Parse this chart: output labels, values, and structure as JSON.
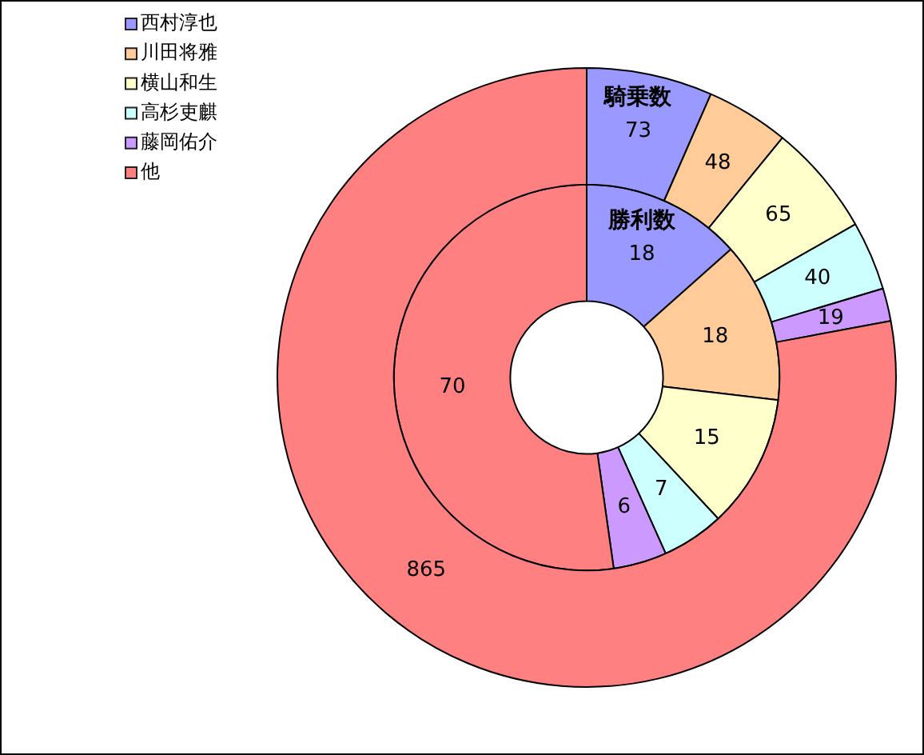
{
  "chart_data": {
    "type": "donut",
    "categories": [
      "西村淳也",
      "川田将雅",
      "横山和生",
      "高杉吏麒",
      "藤岡佑介",
      "他"
    ],
    "colors": [
      "#9999ff",
      "#ffcc99",
      "#ffffcc",
      "#ccffff",
      "#cc99ff",
      "#ff8080"
    ],
    "series": [
      {
        "name": "騎乗数",
        "values": [
          73,
          48,
          65,
          40,
          19,
          865
        ]
      },
      {
        "name": "勝利数",
        "values": [
          18,
          18,
          15,
          7,
          6,
          70
        ]
      }
    ],
    "data_labels": true,
    "legend": "top left"
  }
}
